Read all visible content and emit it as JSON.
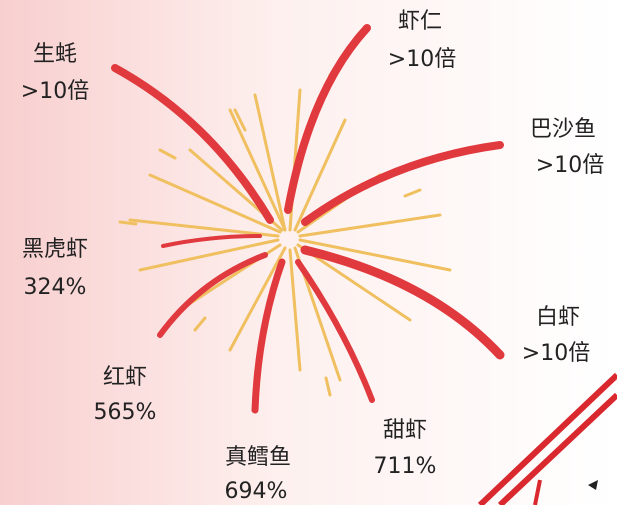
{
  "items": [
    {
      "name": "生蚝",
      "growth": ">10倍"
    },
    {
      "name": "虾仁",
      "growth": ">10倍"
    },
    {
      "name": "巴沙鱼",
      "growth": ">10倍"
    },
    {
      "name": "黑虎虾",
      "growth": "324%"
    },
    {
      "name": "白虾",
      "growth": ">10倍"
    },
    {
      "name": "红虾",
      "growth": "565%"
    },
    {
      "name": "真鳕鱼",
      "growth": "694%"
    },
    {
      "name": "甜虾",
      "growth": "711%"
    }
  ]
}
